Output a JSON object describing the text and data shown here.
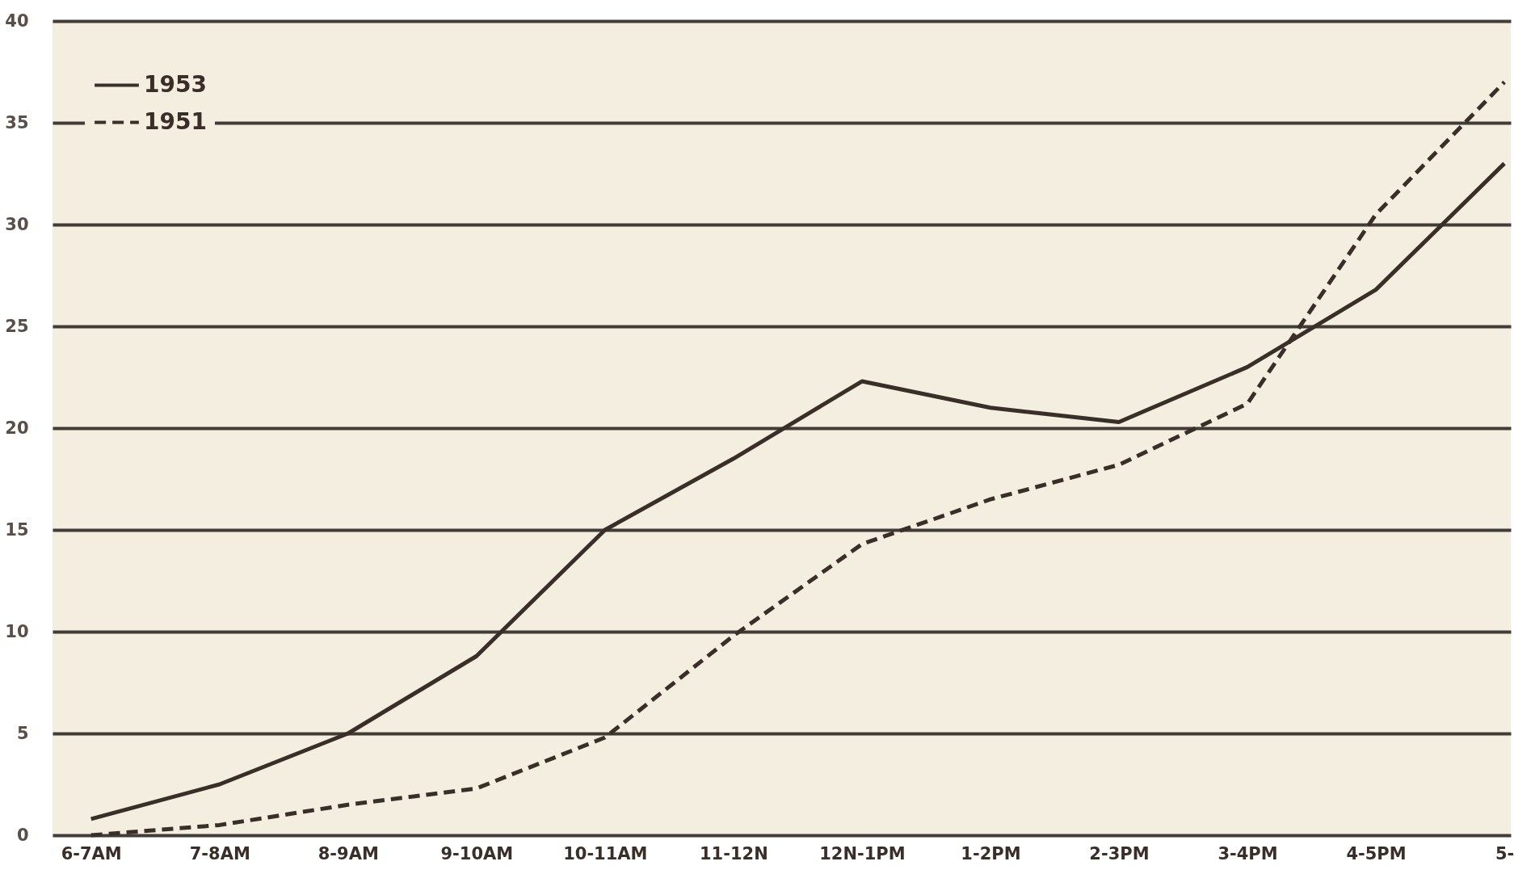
{
  "chart_data": {
    "type": "line",
    "categories": [
      "6-7AM",
      "7-8AM",
      "8-9AM",
      "9-10AM",
      "10-11AM",
      "11-12N",
      "12N-1PM",
      "1-2PM",
      "2-3PM",
      "3-4PM",
      "4-5PM",
      "5-"
    ],
    "series": [
      {
        "name": "1953",
        "color": "#3a2e28",
        "line_style": "solid",
        "values": [
          0.8,
          2.5,
          5,
          8.8,
          15,
          18.5,
          22.3,
          21,
          20.3,
          23,
          26.8,
          33
        ]
      },
      {
        "name": "1951",
        "color": "#3a2e28",
        "line_style": "dashed",
        "values": [
          0,
          0.5,
          1.5,
          2.3,
          4.8,
          9.8,
          14.3,
          16.5,
          18.2,
          21.2,
          30.5,
          37
        ]
      }
    ],
    "ylim": [
      0,
      40
    ],
    "yticks": [
      0,
      5,
      10,
      15,
      20,
      25,
      30,
      35,
      40
    ],
    "grid": "y",
    "legend": "top left",
    "marker": "none"
  }
}
